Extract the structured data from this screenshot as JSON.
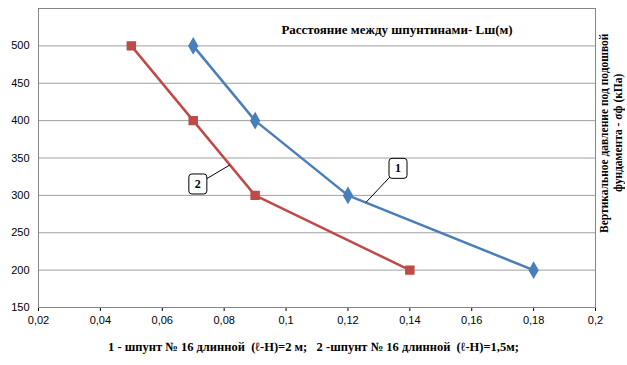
{
  "chart_data": {
    "type": "line",
    "title": "Расстояние между шпунтинами- Lш(м)",
    "y_label": "Вертикальное давление под подошвой фундамента - σф (кПа)",
    "caption": "1 - шпунт № 16 длинной  (ℓ-H)=2 м;   2 -шпунт № 16 длинной  (ℓ-H)=1,5м;",
    "series": [
      {
        "name": "1",
        "color": "#4a7ebb",
        "marker": "diamond",
        "x": [
          0.07,
          0.09,
          0.12,
          0.18
        ],
        "values": [
          500,
          400,
          300,
          200
        ]
      },
      {
        "name": "2",
        "color": "#be4b48",
        "marker": "square",
        "x": [
          0.05,
          0.07,
          0.09,
          0.14
        ],
        "values": [
          500,
          400,
          300,
          200
        ]
      }
    ],
    "xlim": [
      0.02,
      0.2
    ],
    "xticks": [
      {
        "value": 0.02,
        "label": "0,02"
      },
      {
        "value": 0.04,
        "label": "0,04"
      },
      {
        "value": 0.06,
        "label": "0,06"
      },
      {
        "value": 0.08,
        "label": "0,08"
      },
      {
        "value": 0.1,
        "label": "0,1"
      },
      {
        "value": 0.12,
        "label": "0,12"
      },
      {
        "value": 0.14,
        "label": "0,14"
      },
      {
        "value": 0.16,
        "label": "0,16"
      },
      {
        "value": 0.18,
        "label": "0,18"
      },
      {
        "value": 0.2,
        "label": "0,2"
      }
    ],
    "ylim": [
      150,
      550
    ],
    "yticks": [
      150,
      200,
      250,
      300,
      350,
      400,
      450,
      500
    ],
    "grid": "y"
  }
}
